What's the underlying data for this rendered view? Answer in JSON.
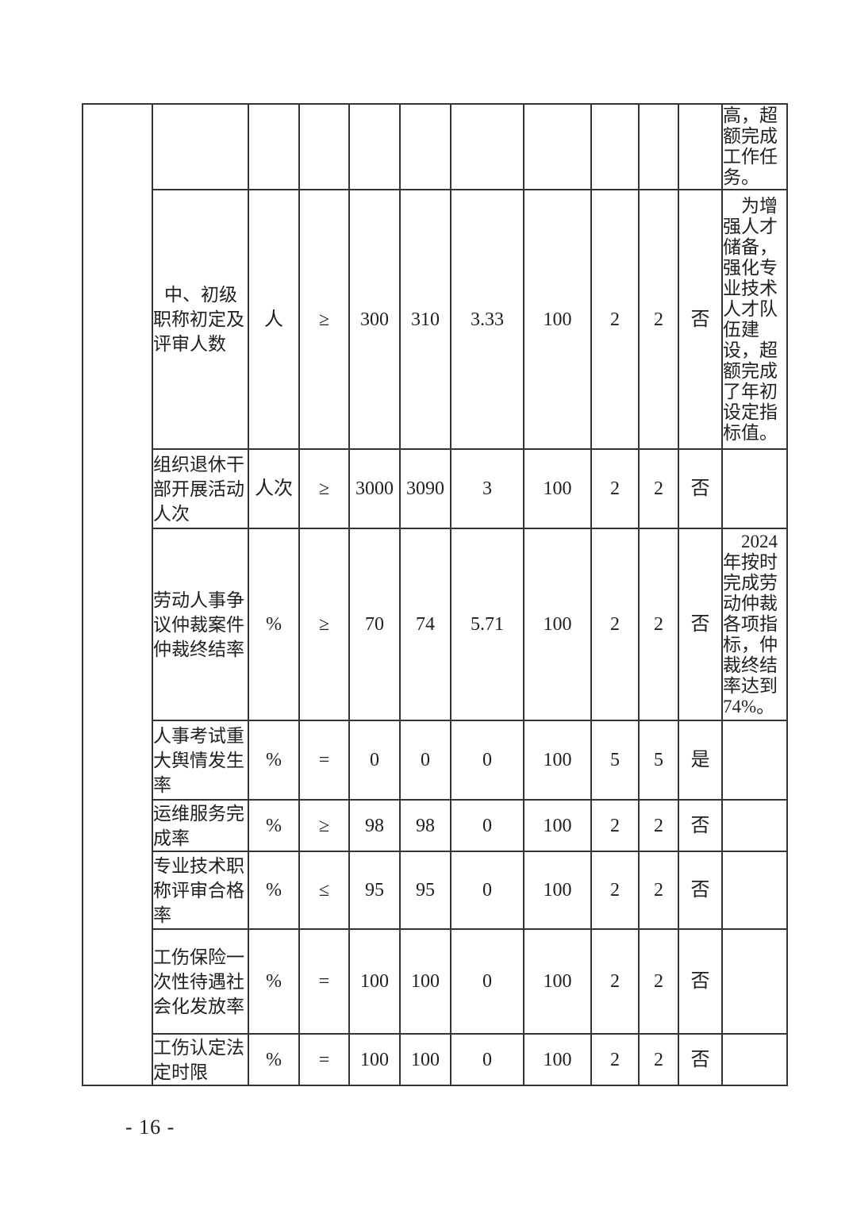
{
  "page_number": "- 16 -",
  "table": {
    "rows": [
      {
        "name": "",
        "unit": "",
        "op": "",
        "target": "",
        "actual": "",
        "deviation": "",
        "score": "",
        "weight": "",
        "points": "",
        "affected": "",
        "remark": "高，超额完成工作任务。"
      },
      {
        "name": "中、初级职称初定及评审人数",
        "unit": "人",
        "op": "≥",
        "target": "300",
        "actual": "310",
        "deviation": "3.33",
        "score": "100",
        "weight": "2",
        "points": "2",
        "affected": "否",
        "remark": "为增强人才储备，强化专业技术人才队伍建设，超额完成了年初设定指标值。"
      },
      {
        "name": "组织退休干部开展活动人次",
        "unit": "人次",
        "op": "≥",
        "target": "3000",
        "actual": "3090",
        "deviation": "3",
        "score": "100",
        "weight": "2",
        "points": "2",
        "affected": "否",
        "remark": ""
      },
      {
        "name": "劳动人事争议仲裁案件仲裁终结率",
        "unit": "%",
        "op": "≥",
        "target": "70",
        "actual": "74",
        "deviation": "5.71",
        "score": "100",
        "weight": "2",
        "points": "2",
        "affected": "否",
        "remark": "2024年按时完成劳动仲裁各项指标，仲裁终结率达到74%。"
      },
      {
        "name": "人事考试重大舆情发生率",
        "unit": "%",
        "op": "=",
        "target": "0",
        "actual": "0",
        "deviation": "0",
        "score": "100",
        "weight": "5",
        "points": "5",
        "affected": "是",
        "remark": ""
      },
      {
        "name": "运维服务完成率",
        "unit": "%",
        "op": "≥",
        "target": "98",
        "actual": "98",
        "deviation": "0",
        "score": "100",
        "weight": "2",
        "points": "2",
        "affected": "否",
        "remark": ""
      },
      {
        "name": "专业技术职称评审合格率",
        "unit": "%",
        "op": "≤",
        "target": "95",
        "actual": "95",
        "deviation": "0",
        "score": "100",
        "weight": "2",
        "points": "2",
        "affected": "否",
        "remark": ""
      },
      {
        "name": "工伤保险一次性待遇社会化发放率",
        "unit": "%",
        "op": "=",
        "target": "100",
        "actual": "100",
        "deviation": "0",
        "score": "100",
        "weight": "2",
        "points": "2",
        "affected": "否",
        "remark": ""
      },
      {
        "name": "工伤认定法定时限",
        "unit": "%",
        "op": "=",
        "target": "100",
        "actual": "100",
        "deviation": "0",
        "score": "100",
        "weight": "2",
        "points": "2",
        "affected": "否",
        "remark": ""
      }
    ]
  }
}
